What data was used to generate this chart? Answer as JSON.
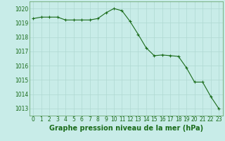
{
  "x": [
    0,
    1,
    2,
    3,
    4,
    5,
    6,
    7,
    8,
    9,
    10,
    11,
    12,
    13,
    14,
    15,
    16,
    17,
    18,
    19,
    20,
    21,
    22,
    23
  ],
  "y": [
    1019.3,
    1019.4,
    1019.4,
    1019.4,
    1019.2,
    1019.2,
    1019.2,
    1019.2,
    1019.3,
    1019.7,
    1020.0,
    1019.85,
    1019.1,
    1018.2,
    1017.25,
    1016.7,
    1016.75,
    1016.7,
    1016.65,
    1015.85,
    1014.85,
    1014.85,
    1013.85,
    1013.0
  ],
  "line_color": "#1a6b1a",
  "marker_color": "#1a6b1a",
  "bg_color": "#c8ece8",
  "grid_color": "#afd8d2",
  "spine_color": "#5a9a5a",
  "title": "Graphe pression niveau de la mer (hPa)",
  "ylim": [
    1012.5,
    1020.5
  ],
  "yticks": [
    1013,
    1014,
    1015,
    1016,
    1017,
    1018,
    1019,
    1020
  ],
  "xticks": [
    0,
    1,
    2,
    3,
    4,
    5,
    6,
    7,
    8,
    9,
    10,
    11,
    12,
    13,
    14,
    15,
    16,
    17,
    18,
    19,
    20,
    21,
    22,
    23
  ],
  "title_fontsize": 7.0,
  "tick_fontsize": 5.5,
  "title_color": "#1a6b1a",
  "tick_color": "#1a6b1a"
}
